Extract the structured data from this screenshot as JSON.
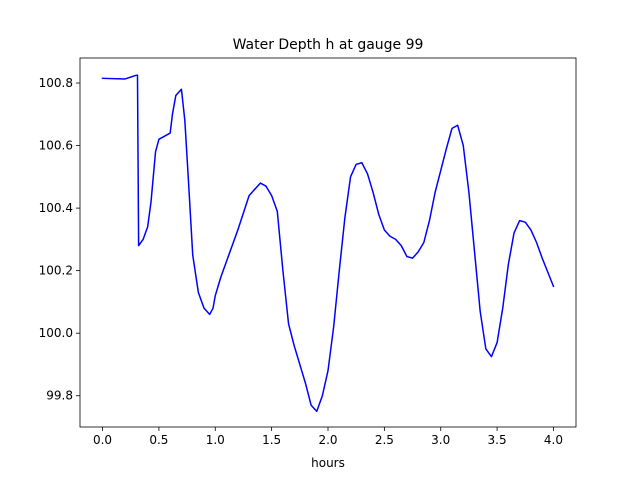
{
  "chart_data": {
    "type": "line",
    "title": "Water Depth h at gauge 99",
    "xlabel": "hours",
    "ylabel": "",
    "xlim": [
      -0.2,
      4.2
    ],
    "ylim": [
      99.7,
      100.88
    ],
    "grid": false,
    "x_ticks": [
      0.0,
      0.5,
      1.0,
      1.5,
      2.0,
      2.5,
      3.0,
      3.5,
      4.0
    ],
    "x_tick_labels": [
      "0.0",
      "0.5",
      "1.0",
      "1.5",
      "2.0",
      "2.5",
      "3.0",
      "3.5",
      "4.0"
    ],
    "y_ticks": [
      99.8,
      100.0,
      100.2,
      100.4,
      100.6,
      100.8
    ],
    "y_tick_labels": [
      "99.8",
      "100.0",
      "100.2",
      "100.4",
      "100.6",
      "100.8"
    ],
    "series": [
      {
        "color": "#0000ff",
        "x": [
          0.0,
          0.2,
          0.3,
          0.31,
          0.32,
          0.36,
          0.4,
          0.43,
          0.47,
          0.5,
          0.55,
          0.6,
          0.62,
          0.65,
          0.7,
          0.73,
          0.76,
          0.8,
          0.85,
          0.9,
          0.95,
          0.98,
          1.0,
          1.05,
          1.1,
          1.2,
          1.3,
          1.4,
          1.45,
          1.5,
          1.55,
          1.6,
          1.65,
          1.7,
          1.8,
          1.85,
          1.9,
          1.95,
          2.0,
          2.05,
          2.1,
          2.15,
          2.2,
          2.25,
          2.3,
          2.35,
          2.4,
          2.45,
          2.5,
          2.55,
          2.6,
          2.65,
          2.7,
          2.75,
          2.8,
          2.85,
          2.9,
          2.95,
          3.0,
          3.05,
          3.1,
          3.15,
          3.2,
          3.25,
          3.3,
          3.35,
          3.4,
          3.45,
          3.5,
          3.55,
          3.6,
          3.65,
          3.7,
          3.75,
          3.8,
          3.85,
          3.9,
          4.0
        ],
        "y": [
          100.815,
          100.813,
          100.825,
          100.825,
          100.28,
          100.3,
          100.34,
          100.42,
          100.58,
          100.62,
          100.63,
          100.64,
          100.7,
          100.76,
          100.78,
          100.68,
          100.5,
          100.25,
          100.13,
          100.08,
          100.06,
          100.08,
          100.12,
          100.18,
          100.23,
          100.33,
          100.44,
          100.48,
          100.47,
          100.44,
          100.39,
          100.2,
          100.03,
          99.96,
          99.84,
          99.77,
          99.75,
          99.8,
          99.88,
          100.02,
          100.2,
          100.37,
          100.5,
          100.54,
          100.545,
          100.51,
          100.45,
          100.38,
          100.33,
          100.31,
          100.3,
          100.28,
          100.245,
          100.24,
          100.26,
          100.29,
          100.36,
          100.45,
          100.52,
          100.59,
          100.655,
          100.665,
          100.6,
          100.45,
          100.26,
          100.07,
          99.95,
          99.925,
          99.97,
          100.08,
          100.22,
          100.32,
          100.36,
          100.355,
          100.33,
          100.29,
          100.24,
          100.15
        ]
      }
    ]
  }
}
